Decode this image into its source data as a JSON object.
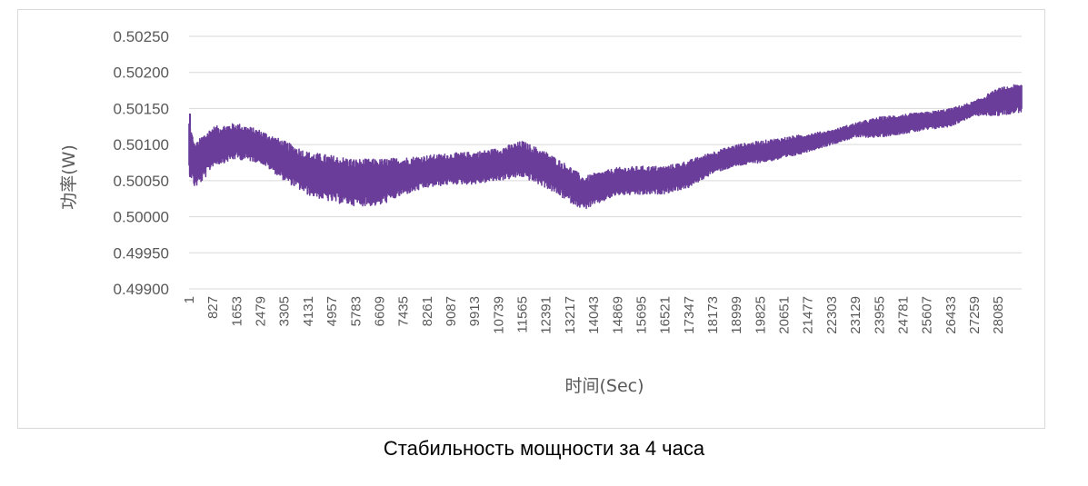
{
  "caption": "Стабильность мощности за 4 часа",
  "colors": {
    "series": "#6a3d9a",
    "grid": "#d9d9d9",
    "text": "#595959"
  },
  "chart_data": {
    "type": "line",
    "title": "",
    "xlabel": "时间(Sec)",
    "ylabel": "功率(W)",
    "ylim": [
      0.499,
      0.5025
    ],
    "yticks": [
      "0.50250",
      "0.50200",
      "0.50150",
      "0.50100",
      "0.50050",
      "0.50000",
      "0.49950",
      "0.49900"
    ],
    "xlim": [
      1,
      28900
    ],
    "xticks": [
      1,
      827,
      1653,
      2479,
      3305,
      4131,
      4957,
      5783,
      6609,
      7435,
      8261,
      9087,
      9913,
      10739,
      11565,
      12391,
      13217,
      14043,
      14869,
      15695,
      16521,
      17347,
      18173,
      18999,
      19825,
      20651,
      21477,
      22303,
      23129,
      23955,
      24781,
      25607,
      26433,
      27259,
      28085
    ],
    "grid": true,
    "legend": "none",
    "series": [
      {
        "name": "",
        "band": true,
        "x": [
          1,
          200,
          500,
          827,
          1653,
          2479,
          3305,
          4131,
          4957,
          5783,
          6609,
          7435,
          8261,
          9087,
          9913,
          10739,
          11565,
          12391,
          13217,
          13700,
          14043,
          14869,
          15695,
          16521,
          17347,
          18173,
          18999,
          19825,
          20651,
          21477,
          22303,
          23129,
          23955,
          24781,
          25607,
          26433,
          27259,
          28085,
          28900
        ],
        "high": [
          0.50135,
          0.501,
          0.50115,
          0.50125,
          0.5013,
          0.5012,
          0.50105,
          0.5009,
          0.50085,
          0.5008,
          0.5008,
          0.50082,
          0.50085,
          0.50088,
          0.5009,
          0.50095,
          0.50105,
          0.5009,
          0.5007,
          0.50055,
          0.5006,
          0.50068,
          0.5007,
          0.5007,
          0.50078,
          0.5009,
          0.501,
          0.50105,
          0.5011,
          0.50115,
          0.5012,
          0.5013,
          0.50138,
          0.50142,
          0.50145,
          0.5015,
          0.5016,
          0.50178,
          0.50185
        ],
        "low": [
          0.5006,
          0.5004,
          0.5005,
          0.5007,
          0.5008,
          0.50075,
          0.5005,
          0.5003,
          0.5002,
          0.50015,
          0.50015,
          0.5003,
          0.5004,
          0.50045,
          0.50045,
          0.5005,
          0.50055,
          0.5004,
          0.5002,
          0.5001,
          0.50015,
          0.5003,
          0.5003,
          0.50032,
          0.5004,
          0.5006,
          0.5007,
          0.50075,
          0.5008,
          0.5009,
          0.501,
          0.5011,
          0.5011,
          0.50115,
          0.5012,
          0.50125,
          0.5014,
          0.5014,
          0.50145
        ]
      }
    ]
  }
}
